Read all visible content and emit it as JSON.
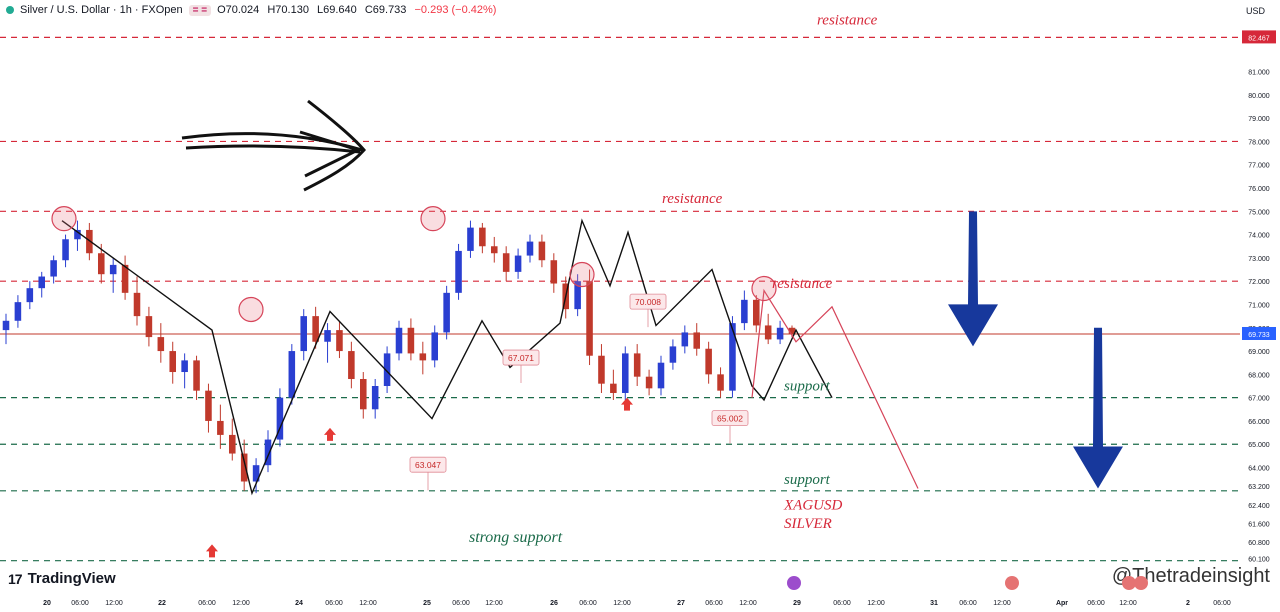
{
  "header": {
    "symbol": "Silver / U.S. Dollar · 1h · FXOpen",
    "o": "O70.024",
    "h": "H70.130",
    "l": "L69.640",
    "c": "C69.733",
    "chg": "−0.293 (−0.42%)"
  },
  "currency": "USD",
  "branding": {
    "logo": "TradingView",
    "watermark": "@Thetradeinsight"
  },
  "colors": {
    "bull": "#2a3fd1",
    "bear": "#c0392b",
    "resistance": "#d62839",
    "support": "#1b6b4a",
    "arrow": "#17389c"
  },
  "chart_data": {
    "type": "candlestick",
    "x_tick_labels": [
      "20",
      "06:00",
      "12:00",
      "22",
      "06:00",
      "12:00",
      "24",
      "06:00",
      "12:00",
      "25",
      "06:00",
      "12:00",
      "26",
      "06:00",
      "12:00",
      "27",
      "06:00",
      "12:00",
      "29",
      "06:00",
      "12:00",
      "31",
      "06:00",
      "12:00",
      "Apr",
      "06:00",
      "12:00",
      "2",
      "06:00"
    ],
    "y_tick_labels": [
      "82.467",
      "81.000",
      "80.000",
      "79.000",
      "78.000",
      "77.000",
      "76.000",
      "75.000",
      "74.000",
      "73.000",
      "72.000",
      "71.000",
      "70.000",
      "69.733",
      "69.000",
      "68.000",
      "67.000",
      "66.000",
      "65.000",
      "64.000",
      "63.200",
      "62.400",
      "61.600",
      "60.800",
      "60.100"
    ],
    "ylim": [
      59.6,
      83.3
    ],
    "current_price": 69.733,
    "levels": [
      {
        "label": "resistance",
        "price": 82.467,
        "kind": "resistance"
      },
      {
        "label": "",
        "price": 78.0,
        "kind": "resistance"
      },
      {
        "label": "resistance",
        "price": 75.0,
        "kind": "resistance"
      },
      {
        "label": "resistance",
        "price": 72.0,
        "kind": "resistance"
      },
      {
        "label": "support",
        "price": 67.0,
        "kind": "support"
      },
      {
        "label": "",
        "price": 65.0,
        "kind": "support"
      },
      {
        "label": "support",
        "price": 63.0,
        "kind": "support"
      },
      {
        "label": "strong support",
        "price": 60.0,
        "kind": "support"
      }
    ],
    "price_tags": [
      {
        "text": "70.008"
      },
      {
        "text": "67.071"
      },
      {
        "text": "65.002"
      },
      {
        "text": "63.047"
      }
    ],
    "annotation_labels": [
      "XAGUSD",
      "SILVER"
    ],
    "swing_path": [
      74.6,
      69.9,
      62.9,
      70.7,
      66.1,
      70.3,
      68.3,
      70.2,
      74.6,
      71.8,
      74.1,
      70.1,
      72.5,
      67.5,
      66.9,
      69.9,
      67.0,
      71.6,
      69.4,
      70.9,
      63.1
    ],
    "candles": [
      {
        "o": 69.9,
        "h": 70.6,
        "l": 69.3,
        "c": 70.3
      },
      {
        "o": 70.3,
        "h": 71.4,
        "l": 70.0,
        "c": 71.1
      },
      {
        "o": 71.1,
        "h": 72.0,
        "l": 70.8,
        "c": 71.7
      },
      {
        "o": 71.7,
        "h": 72.4,
        "l": 71.3,
        "c": 72.2
      },
      {
        "o": 72.2,
        "h": 73.1,
        "l": 71.9,
        "c": 72.9
      },
      {
        "o": 72.9,
        "h": 74.0,
        "l": 72.6,
        "c": 73.8
      },
      {
        "o": 73.8,
        "h": 74.6,
        "l": 73.3,
        "c": 74.2
      },
      {
        "o": 74.2,
        "h": 74.5,
        "l": 72.9,
        "c": 73.2
      },
      {
        "o": 73.2,
        "h": 73.6,
        "l": 71.9,
        "c": 72.3
      },
      {
        "o": 72.3,
        "h": 73.0,
        "l": 71.5,
        "c": 72.7
      },
      {
        "o": 72.7,
        "h": 73.1,
        "l": 71.2,
        "c": 71.5
      },
      {
        "o": 71.5,
        "h": 72.2,
        "l": 70.1,
        "c": 70.5
      },
      {
        "o": 70.5,
        "h": 70.9,
        "l": 69.2,
        "c": 69.6
      },
      {
        "o": 69.6,
        "h": 70.2,
        "l": 68.5,
        "c": 69.0
      },
      {
        "o": 69.0,
        "h": 69.4,
        "l": 67.6,
        "c": 68.1
      },
      {
        "o": 68.1,
        "h": 68.9,
        "l": 67.4,
        "c": 68.6
      },
      {
        "o": 68.6,
        "h": 68.8,
        "l": 66.9,
        "c": 67.3
      },
      {
        "o": 67.3,
        "h": 67.6,
        "l": 65.5,
        "c": 66.0
      },
      {
        "o": 66.0,
        "h": 66.7,
        "l": 64.8,
        "c": 65.4
      },
      {
        "o": 65.4,
        "h": 66.1,
        "l": 64.3,
        "c": 64.6
      },
      {
        "o": 64.6,
        "h": 65.2,
        "l": 63.0,
        "c": 63.4
      },
      {
        "o": 63.4,
        "h": 64.4,
        "l": 62.9,
        "c": 64.1
      },
      {
        "o": 64.1,
        "h": 65.6,
        "l": 63.8,
        "c": 65.2
      },
      {
        "o": 65.2,
        "h": 67.4,
        "l": 64.9,
        "c": 67.0
      },
      {
        "o": 67.0,
        "h": 69.3,
        "l": 66.7,
        "c": 69.0
      },
      {
        "o": 69.0,
        "h": 70.8,
        "l": 68.6,
        "c": 70.5
      },
      {
        "o": 70.5,
        "h": 70.9,
        "l": 69.1,
        "c": 69.4
      },
      {
        "o": 69.4,
        "h": 70.2,
        "l": 68.5,
        "c": 69.9
      },
      {
        "o": 69.9,
        "h": 70.3,
        "l": 68.7,
        "c": 69.0
      },
      {
        "o": 69.0,
        "h": 69.4,
        "l": 67.4,
        "c": 67.8
      },
      {
        "o": 67.8,
        "h": 68.1,
        "l": 66.1,
        "c": 66.5
      },
      {
        "o": 66.5,
        "h": 67.8,
        "l": 66.1,
        "c": 67.5
      },
      {
        "o": 67.5,
        "h": 69.2,
        "l": 67.2,
        "c": 68.9
      },
      {
        "o": 68.9,
        "h": 70.3,
        "l": 68.6,
        "c": 70.0
      },
      {
        "o": 70.0,
        "h": 70.4,
        "l": 68.6,
        "c": 68.9
      },
      {
        "o": 68.9,
        "h": 69.4,
        "l": 68.0,
        "c": 68.6
      },
      {
        "o": 68.6,
        "h": 70.1,
        "l": 68.3,
        "c": 69.8
      },
      {
        "o": 69.8,
        "h": 71.8,
        "l": 69.5,
        "c": 71.5
      },
      {
        "o": 71.5,
        "h": 73.6,
        "l": 71.2,
        "c": 73.3
      },
      {
        "o": 73.3,
        "h": 74.6,
        "l": 73.0,
        "c": 74.3
      },
      {
        "o": 74.3,
        "h": 74.5,
        "l": 73.2,
        "c": 73.5
      },
      {
        "o": 73.5,
        "h": 73.9,
        "l": 72.8,
        "c": 73.2
      },
      {
        "o": 73.2,
        "h": 73.5,
        "l": 72.0,
        "c": 72.4
      },
      {
        "o": 72.4,
        "h": 73.4,
        "l": 72.1,
        "c": 73.1
      },
      {
        "o": 73.1,
        "h": 74.0,
        "l": 72.8,
        "c": 73.7
      },
      {
        "o": 73.7,
        "h": 74.0,
        "l": 72.6,
        "c": 72.9
      },
      {
        "o": 72.9,
        "h": 73.2,
        "l": 71.5,
        "c": 71.9
      },
      {
        "o": 71.9,
        "h": 72.2,
        "l": 70.4,
        "c": 70.8
      },
      {
        "o": 70.8,
        "h": 72.3,
        "l": 70.5,
        "c": 72.0
      },
      {
        "o": 72.0,
        "h": 72.5,
        "l": 68.4,
        "c": 68.8
      },
      {
        "o": 68.8,
        "h": 69.3,
        "l": 67.2,
        "c": 67.6
      },
      {
        "o": 67.6,
        "h": 68.2,
        "l": 66.9,
        "c": 67.2
      },
      {
        "o": 67.2,
        "h": 69.2,
        "l": 66.9,
        "c": 68.9
      },
      {
        "o": 68.9,
        "h": 69.3,
        "l": 67.5,
        "c": 67.9
      },
      {
        "o": 67.9,
        "h": 68.2,
        "l": 67.1,
        "c": 67.4
      },
      {
        "o": 67.4,
        "h": 68.8,
        "l": 67.1,
        "c": 68.5
      },
      {
        "o": 68.5,
        "h": 69.5,
        "l": 68.2,
        "c": 69.2
      },
      {
        "o": 69.2,
        "h": 70.1,
        "l": 68.9,
        "c": 69.8
      },
      {
        "o": 69.8,
        "h": 70.2,
        "l": 68.8,
        "c": 69.1
      },
      {
        "o": 69.1,
        "h": 69.4,
        "l": 67.6,
        "c": 68.0
      },
      {
        "o": 68.0,
        "h": 68.3,
        "l": 67.0,
        "c": 67.3
      },
      {
        "o": 67.3,
        "h": 70.5,
        "l": 67.0,
        "c": 70.2
      },
      {
        "o": 70.2,
        "h": 71.6,
        "l": 69.9,
        "c": 71.2
      },
      {
        "o": 71.2,
        "h": 71.4,
        "l": 69.8,
        "c": 70.1
      },
      {
        "o": 70.1,
        "h": 70.6,
        "l": 69.3,
        "c": 69.5
      },
      {
        "o": 69.5,
        "h": 70.3,
        "l": 69.3,
        "c": 70.0
      },
      {
        "o": 70.0,
        "h": 70.1,
        "l": 69.6,
        "c": 69.733
      }
    ]
  }
}
